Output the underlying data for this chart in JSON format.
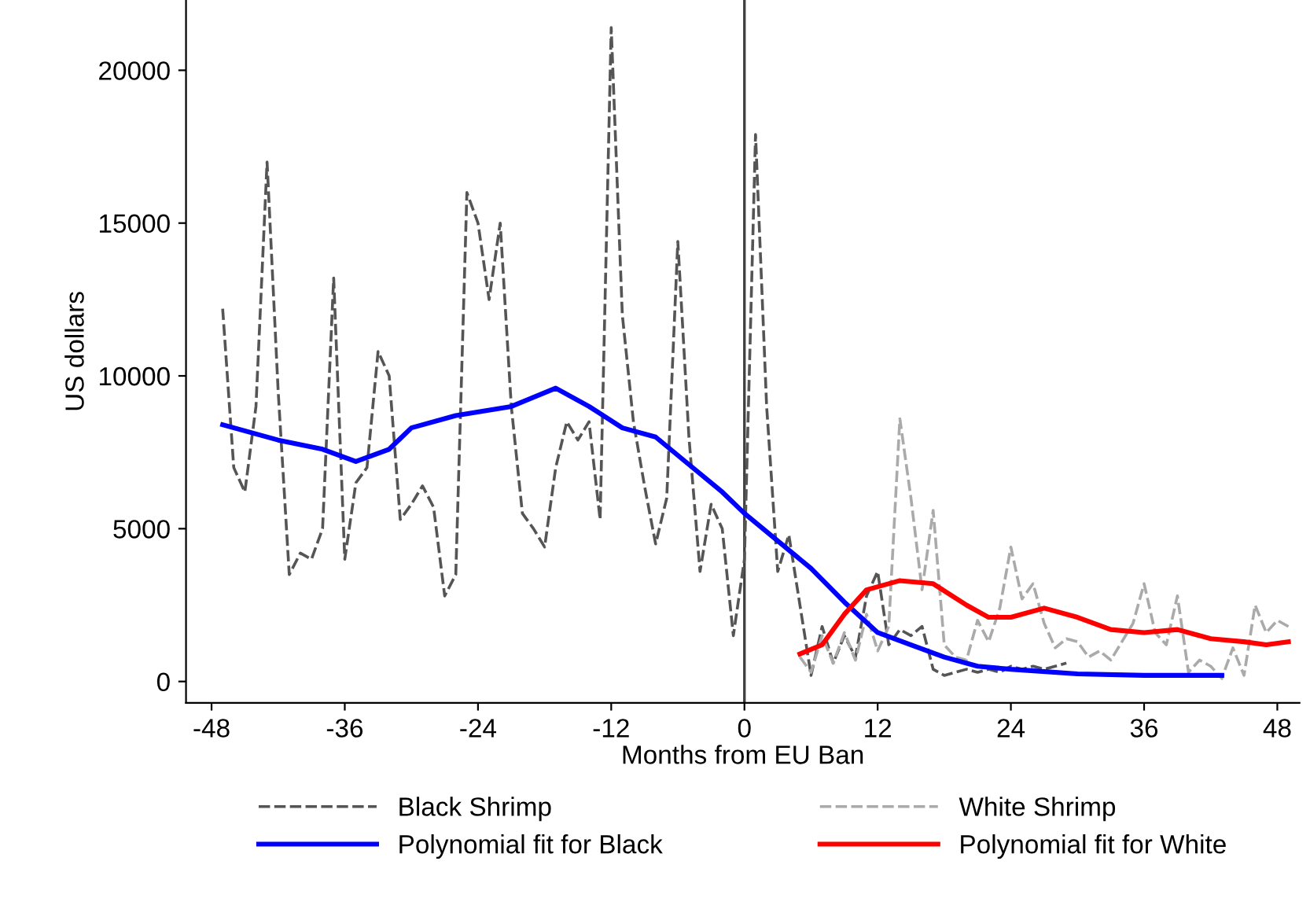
{
  "chart_data": {
    "type": "line",
    "xlabel": "Months from EU Ban",
    "ylabel": "US dollars",
    "xlim": [
      -50.3,
      50
    ],
    "ylim": [
      -700,
      22300
    ],
    "xticks": [
      -48,
      -36,
      -24,
      -12,
      0,
      12,
      24,
      36,
      48
    ],
    "yticks": [
      0,
      5000,
      10000,
      15000,
      20000
    ],
    "grid": false,
    "legend": "bottom",
    "marker": "none",
    "ref_lines": [
      {
        "axis": "x",
        "value": 0,
        "color": "#404040",
        "line_style": "solid"
      }
    ],
    "series": [
      {
        "name": "Black Shrimp",
        "color": "#555555",
        "line_style": "dashed",
        "x": [
          -47,
          -46,
          -45,
          -44,
          -43,
          -42,
          -41,
          -40,
          -39,
          -38,
          -37,
          -36,
          -35,
          -34,
          -33,
          -32,
          -31,
          -30,
          -29,
          -28,
          -27,
          -26,
          -25,
          -24,
          -23,
          -22,
          -21,
          -20,
          -19,
          -18,
          -17,
          -16,
          -15,
          -14,
          -13,
          -12,
          -11,
          -10,
          -9,
          -8,
          -7,
          -6,
          -5,
          -4,
          -3,
          -2,
          -1,
          0,
          1,
          2,
          3,
          4,
          5,
          6,
          7,
          8,
          9,
          10,
          11,
          12,
          13,
          14,
          15,
          16,
          17,
          18,
          19,
          20,
          21,
          22,
          23,
          24,
          25,
          26,
          27,
          28,
          29
        ],
        "values": [
          12200,
          7000,
          6200,
          9000,
          17000,
          9500,
          3500,
          4200,
          4000,
          5000,
          13200,
          4000,
          6500,
          7000,
          10800,
          10000,
          5300,
          5800,
          6400,
          5700,
          2800,
          3500,
          16000,
          15000,
          12500,
          15000,
          9000,
          5500,
          5000,
          4400,
          7000,
          8500,
          7900,
          8500,
          5300,
          21400,
          12000,
          8500,
          6400,
          4500,
          6000,
          14400,
          8000,
          3600,
          5800,
          5000,
          1500,
          4000,
          17900,
          9000,
          3600,
          4800,
          2500,
          200,
          1800,
          600,
          1500,
          800,
          2800,
          3600,
          1200,
          1700,
          1500,
          1800,
          400,
          200,
          300,
          400,
          300,
          400,
          300,
          500,
          400,
          500,
          400,
          500,
          600
        ]
      },
      {
        "name": "White Shrimp",
        "color": "#aaaaaa",
        "line_style": "dashed",
        "x": [
          5,
          6,
          7,
          8,
          9,
          10,
          11,
          12,
          13,
          14,
          15,
          16,
          17,
          18,
          19,
          20,
          21,
          22,
          23,
          24,
          25,
          26,
          27,
          28,
          29,
          30,
          31,
          32,
          33,
          34,
          35,
          36,
          37,
          38,
          39,
          40,
          41,
          42,
          43,
          44,
          45,
          46,
          47,
          48,
          49
        ],
        "values": [
          800,
          300,
          1500,
          600,
          1600,
          700,
          2200,
          1000,
          1800,
          8600,
          6000,
          3000,
          5600,
          1200,
          800,
          700,
          2000,
          1300,
          2400,
          4400,
          2700,
          3200,
          1900,
          1100,
          1400,
          1300,
          800,
          1000,
          700,
          1300,
          1900,
          3200,
          1600,
          1200,
          2800,
          300,
          700,
          500,
          100,
          1100,
          200,
          2500,
          1600,
          2000,
          1800
        ]
      },
      {
        "name": "Polynomial fit for Black",
        "color": "#0000ff",
        "line_style": "solid",
        "x": [
          -47,
          -42,
          -38,
          -35,
          -32,
          -30,
          -26,
          -21,
          -17,
          -14,
          -11,
          -8,
          -5,
          -2,
          0,
          3,
          6,
          9,
          12,
          15,
          18,
          21,
          24,
          30,
          36,
          43
        ],
        "values": [
          8400,
          7900,
          7600,
          7200,
          7600,
          8300,
          8700,
          9000,
          9600,
          9000,
          8300,
          8000,
          7100,
          6200,
          5500,
          4600,
          3700,
          2600,
          1600,
          1200,
          800,
          500,
          400,
          250,
          200,
          200
        ]
      },
      {
        "name": "Polynomial fit for White",
        "color": "#ff0000",
        "line_style": "solid",
        "x": [
          5,
          7,
          9,
          11,
          14,
          17,
          20,
          22,
          24,
          27,
          30,
          33,
          36,
          39,
          42,
          45,
          47,
          49
        ],
        "values": [
          900,
          1200,
          2200,
          3000,
          3300,
          3200,
          2500,
          2100,
          2100,
          2400,
          2100,
          1700,
          1600,
          1700,
          1400,
          1300,
          1200,
          1300
        ]
      }
    ]
  }
}
